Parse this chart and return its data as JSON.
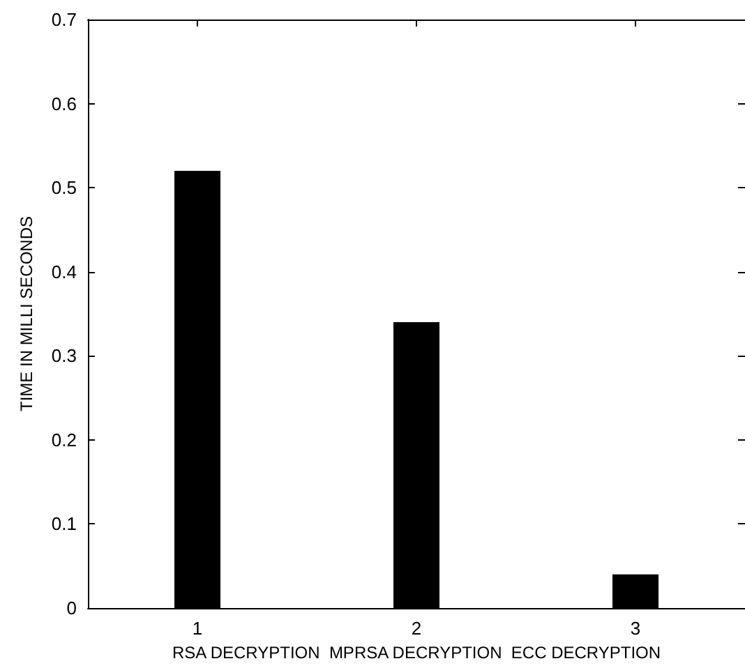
{
  "chart_data": {
    "type": "bar",
    "x": [
      1,
      2,
      3
    ],
    "values": [
      0.52,
      0.34,
      0.04
    ],
    "color": "#000000",
    "xlabel": "RSA DECRYPTION  MPRSA DECRYPTION  ECC DECRYPTION",
    "ylabel": "TIME IN MILLI SECONDS",
    "xlim": [
      0.5,
      3.5
    ],
    "xticks": [
      1,
      2,
      3
    ],
    "ylim": [
      0,
      0.7
    ],
    "yticks": [
      0,
      0.1,
      0.2,
      0.3,
      0.4,
      0.5,
      0.6,
      0.7
    ]
  }
}
